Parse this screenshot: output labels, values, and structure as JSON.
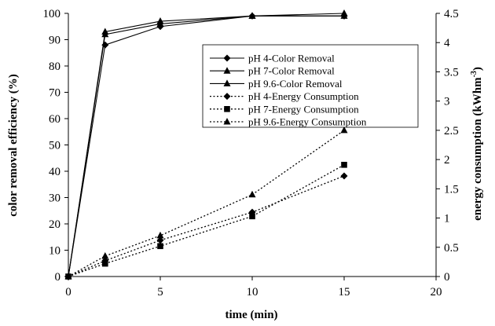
{
  "chart_data": {
    "type": "line",
    "title": "",
    "xlabel": "time (min)",
    "ylabel": "color removal efficiency (%)",
    "y2label_text": "energy consumption (kWhm",
    "y2label_sup": "-3",
    "y2label_close": ")",
    "xlim": [
      0,
      20
    ],
    "ylim": [
      0,
      100
    ],
    "y2lim": [
      0,
      4.5
    ],
    "x_ticks": [
      "0",
      "5",
      "10",
      "15",
      "20"
    ],
    "y_ticks": [
      "0",
      "10",
      "20",
      "30",
      "40",
      "50",
      "60",
      "70",
      "80",
      "90",
      "100"
    ],
    "y2_ticks": [
      "0",
      "0.5",
      "1",
      "1.5",
      "2",
      "2.5",
      "3",
      "3.5",
      "4",
      "4.5"
    ],
    "grid": false,
    "legend_position": "top-right",
    "series": [
      {
        "name": "pH 4-Color Removal",
        "axis": "left",
        "style": "solid",
        "marker": "diamond",
        "x": [
          0,
          2,
          5,
          10,
          15
        ],
        "y": [
          0,
          88,
          95,
          99,
          99
        ]
      },
      {
        "name": "pH 7-Color Removal",
        "axis": "left",
        "style": "solid",
        "marker": "triangle",
        "x": [
          0,
          2,
          5,
          10,
          15
        ],
        "y": [
          0,
          92,
          96,
          99,
          99
        ]
      },
      {
        "name": "pH 9.6-Color Removal",
        "axis": "left",
        "style": "solid",
        "marker": "triangle",
        "x": [
          0,
          2,
          5,
          10,
          15
        ],
        "y": [
          0,
          93,
          97,
          99,
          100
        ]
      },
      {
        "name": "pH 4-Energy Consumption",
        "axis": "right",
        "style": "dotted",
        "marker": "diamond",
        "x": [
          0,
          2,
          5,
          10,
          15
        ],
        "y": [
          0,
          0.27,
          0.62,
          1.1,
          1.72
        ]
      },
      {
        "name": "pH 7-Energy Consumption",
        "axis": "right",
        "style": "dotted",
        "marker": "square",
        "x": [
          0,
          2,
          5,
          10,
          15
        ],
        "y": [
          0,
          0.22,
          0.52,
          1.03,
          1.91
        ]
      },
      {
        "name": "pH 9.6-Energy Consumption",
        "axis": "right",
        "style": "dotted",
        "marker": "triangle",
        "x": [
          0,
          2,
          5,
          10,
          15
        ],
        "y": [
          0,
          0.35,
          0.7,
          1.4,
          2.5
        ]
      }
    ]
  }
}
